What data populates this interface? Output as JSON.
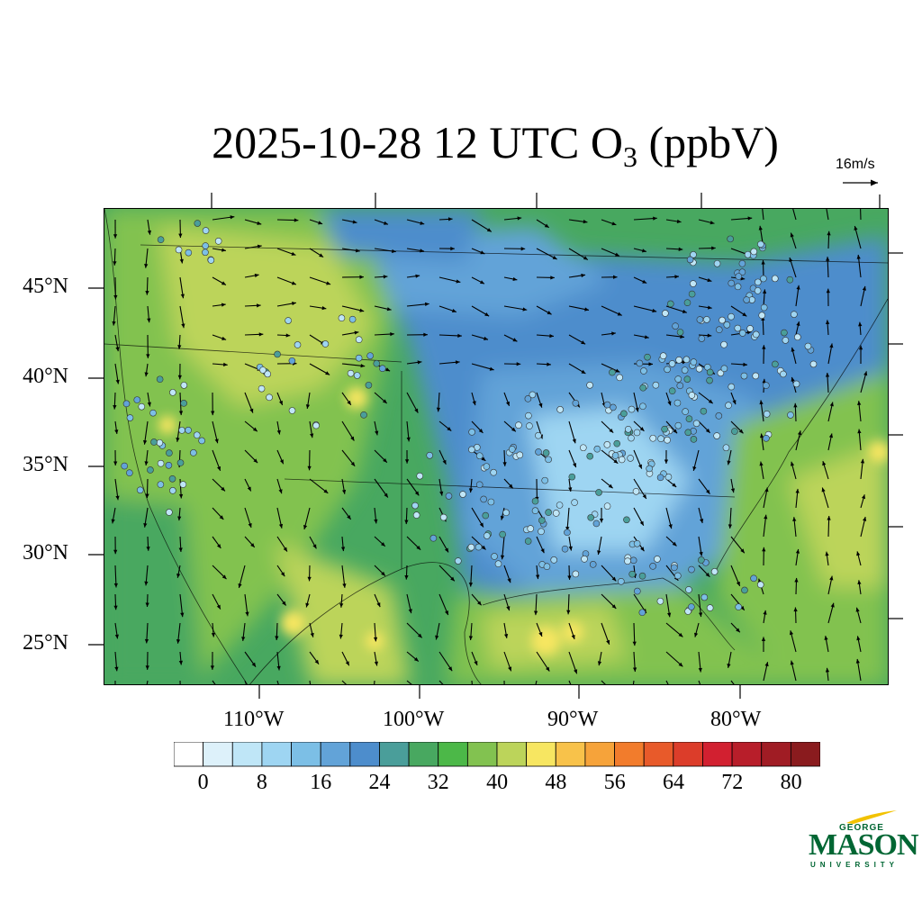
{
  "title": {
    "main": "2025-10-28 12 UTC O",
    "sub": "3",
    "tail": " (ppbV)"
  },
  "reference_vector": {
    "label": "16m/s",
    "speed_ms": 16
  },
  "map": {
    "projection": "lambert-conformal",
    "lat_labels": [
      "45°N",
      "40°N",
      "35°N",
      "30°N",
      "25°N"
    ],
    "lon_labels": [
      "110°W",
      "100°W",
      "90°W",
      "80°W"
    ],
    "field": "ozone concentration with wind vectors and monitoring-site observations"
  },
  "colorbar": {
    "labels": [
      "0",
      "8",
      "16",
      "24",
      "32",
      "40",
      "48",
      "56",
      "64",
      "72",
      "80"
    ],
    "colors": [
      "#ffffff",
      "#ddf1fa",
      "#bfe6f7",
      "#9ed5f2",
      "#7cbfe6",
      "#62a3d8",
      "#4d8dcc",
      "#4a9e9a",
      "#48a860",
      "#4cb848",
      "#82c250",
      "#bcd45a",
      "#f7e661",
      "#f8c24a",
      "#f6a33a",
      "#f27c2c",
      "#e85a2a",
      "#dc3d2a",
      "#d22030",
      "#b81e2a",
      "#a01c24",
      "#8a1b1e"
    ]
  },
  "logo": {
    "line1": "GEORGE",
    "line2": "MASON",
    "line3": "UNIVERSITY"
  }
}
